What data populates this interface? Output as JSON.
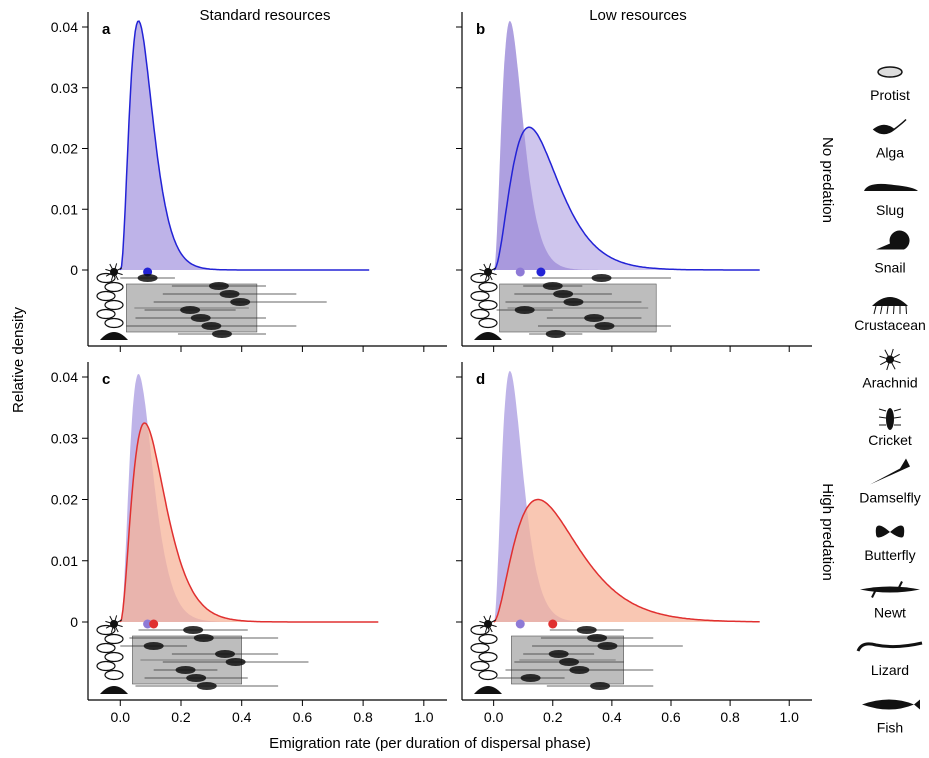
{
  "chart_data": {
    "type": "area",
    "ylabel": "Relative density",
    "xlabel": "Emigration rate (per duration of dispersal phase)",
    "xlim": [
      -0.08,
      1.05
    ],
    "ylim": [
      0,
      0.042
    ],
    "xticks": [
      "0.0",
      "0.2",
      "0.4",
      "0.6",
      "0.8",
      "1.0"
    ],
    "yticks": [
      "0",
      "0.01",
      "0.02",
      "0.03",
      "0.04"
    ],
    "column_titles": [
      "Standard resources",
      "Low resources"
    ],
    "row_titles": [
      "No predation",
      "High predation"
    ],
    "colors": {
      "reference_fill": "#b3a6e4",
      "blue_line": "#2323d6",
      "red_line": "#e03030",
      "red_fill": "#f7b49a",
      "box_fill": "#bdbdbd"
    },
    "panels": [
      {
        "label": "a",
        "condition": "Standard resources, No predation",
        "peak_x": 0.06,
        "peak_y": 0.041,
        "line_color": "blue",
        "mean_x": 0.09,
        "mean_color": "blue",
        "box_range": [
          0.02,
          0.45
        ]
      },
      {
        "label": "b",
        "condition": "Low resources, No predation",
        "peak_x": 0.12,
        "peak_y": 0.0235,
        "line_color": "blue",
        "reference_peak_x": 0.055,
        "reference_peak_y": 0.041,
        "reference_mean_x": 0.09,
        "mean_x": 0.16,
        "mean_color": "blue",
        "box_range": [
          0.02,
          0.55
        ]
      },
      {
        "label": "c",
        "condition": "Standard resources, High predation",
        "peak_x": 0.08,
        "peak_y": 0.0325,
        "line_color": "red",
        "reference_peak_x": 0.06,
        "reference_peak_y": 0.0405,
        "reference_mean_x": 0.09,
        "mean_x": 0.11,
        "mean_color": "red",
        "box_range": [
          0.04,
          0.4
        ]
      },
      {
        "label": "d",
        "condition": "Low resources, High predation",
        "peak_x": 0.15,
        "peak_y": 0.02,
        "line_color": "red",
        "reference_peak_x": 0.055,
        "reference_peak_y": 0.041,
        "reference_mean_x": 0.09,
        "mean_x": 0.2,
        "mean_color": "red",
        "box_range": [
          0.06,
          0.44
        ]
      }
    ],
    "legend": {
      "placement": "right",
      "entries": [
        "Protist",
        "Alga",
        "Slug",
        "Snail",
        "Crustacean",
        "Arachnid",
        "Cricket",
        "Damselfly",
        "Butterfly",
        "Newt",
        "Lizard",
        "Fish"
      ],
      "icons": [
        "protist-icon",
        "alga-icon",
        "slug-icon",
        "snail-icon",
        "crustacean-icon",
        "arachnid-icon",
        "cricket-icon",
        "damselfly-icon",
        "butterfly-icon",
        "newt-icon",
        "lizard-icon",
        "fish-icon"
      ]
    }
  }
}
